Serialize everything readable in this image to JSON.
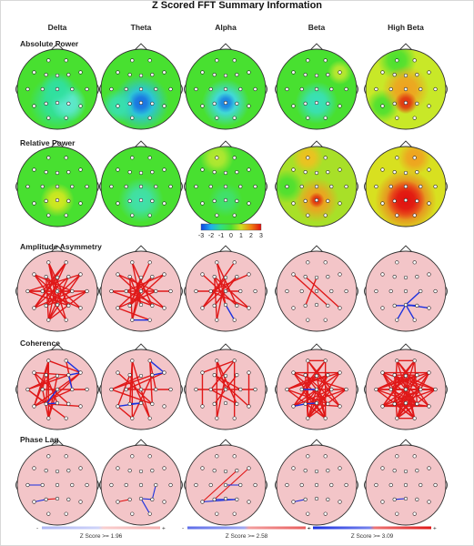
{
  "title": "Z Scored FFT Summary Information",
  "bands": [
    "Delta",
    "Theta",
    "Alpha",
    "Beta",
    "High Beta"
  ],
  "sections": {
    "absolute_power": "Absolute Power",
    "relative_power": "Relative Power",
    "amplitude_asymmetry": "Amplitude Asymmetry",
    "coherence": "Coherence",
    "phase_lag": "Phase Lag"
  },
  "colorbar": {
    "ticks": [
      "-3",
      "-2",
      "-1",
      "0",
      "1",
      "2",
      "3"
    ],
    "colors": [
      "#1040e0",
      "#20b0f0",
      "#30e080",
      "#48e030",
      "#d0e020",
      "#f08010",
      "#e01010"
    ]
  },
  "zscore_legend": [
    {
      "minus": "-",
      "text": "Z Score >= 1.96",
      "plus": "+"
    },
    {
      "minus": "-",
      "text": "Z Score >= 2.58",
      "plus": "+"
    },
    {
      "minus": "-",
      "text": "Z Score >= 3.09",
      "plus": "+"
    }
  ],
  "maps": {
    "absolute_power": [
      {
        "base": "#48e030",
        "blobs": [
          {
            "e": "Pz",
            "c": "#30e0a0",
            "r": 0.5
          },
          {
            "e": "P4",
            "c": "#60e8d0",
            "r": 0.32
          },
          {
            "e": "Cz",
            "c": "#30e0a0",
            "r": 0.3
          }
        ]
      },
      {
        "base": "#48e030",
        "blobs": [
          {
            "e": "Pz",
            "c": "#28c0f0",
            "r": 0.5
          },
          {
            "e": "Pz",
            "c": "#1a70e0",
            "r": 0.22
          },
          {
            "e": "T5",
            "c": "#38e0b0",
            "r": 0.3
          }
        ]
      },
      {
        "base": "#48e030",
        "blobs": [
          {
            "e": "Pz",
            "c": "#40d8f0",
            "r": 0.42
          },
          {
            "e": "Pz",
            "c": "#1a80e0",
            "r": 0.18
          }
        ]
      },
      {
        "base": "#48e030",
        "blobs": [
          {
            "e": "Pz",
            "c": "#38e0c0",
            "r": 0.38
          },
          {
            "e": "F8",
            "c": "#c0e830",
            "r": 0.22
          }
        ]
      },
      {
        "base": "#c8e828",
        "blobs": [
          {
            "e": "Fp1",
            "c": "#48e030",
            "r": 0.35
          },
          {
            "e": "T5",
            "c": "#48e030",
            "r": 0.3
          },
          {
            "e": "Cz",
            "c": "#f0a020",
            "r": 0.42
          },
          {
            "e": "Pz",
            "c": "#e03010",
            "r": 0.2
          }
        ]
      }
    ],
    "relative_power": [
      {
        "base": "#48e030",
        "blobs": [
          {
            "e": "Pz",
            "c": "#d8e820",
            "r": 0.3
          }
        ]
      },
      {
        "base": "#48e030",
        "blobs": [
          {
            "e": "Pz",
            "c": "#40e0b0",
            "r": 0.4
          }
        ]
      },
      {
        "base": "#48e030",
        "blobs": [
          {
            "e": "Fp1",
            "c": "#b8e830",
            "r": 0.3
          },
          {
            "e": "Pz",
            "c": "#40e070",
            "r": 0.3
          }
        ]
      },
      {
        "base": "#a8e028",
        "blobs": [
          {
            "e": "Pz",
            "c": "#f0a020",
            "r": 0.4
          },
          {
            "e": "Pz",
            "c": "#e03010",
            "r": 0.14
          },
          {
            "e": "Fp1",
            "c": "#f0c020",
            "r": 0.28
          },
          {
            "e": "T3",
            "c": "#48e030",
            "r": 0.3
          }
        ]
      },
      {
        "base": "#d8e020",
        "blobs": [
          {
            "e": "Pz",
            "c": "#f06020",
            "r": 0.55
          },
          {
            "e": "Pz",
            "c": "#e01010",
            "r": 0.35
          },
          {
            "e": "Fp2",
            "c": "#f0a020",
            "r": 0.3
          }
        ]
      }
    ]
  },
  "connections": {
    "amplitude_asymmetry": [
      {
        "red": [
          [
            "Fp1",
            "Pz"
          ],
          [
            "Fp1",
            "O2"
          ],
          [
            "Fp1",
            "P4"
          ],
          [
            "F7",
            "C4"
          ],
          [
            "F7",
            "P4"
          ],
          [
            "F7",
            "O2"
          ],
          [
            "F3",
            "Pz"
          ],
          [
            "F3",
            "O1"
          ],
          [
            "F3",
            "T6"
          ],
          [
            "Fz",
            "O1"
          ],
          [
            "Fz",
            "T5"
          ],
          [
            "F4",
            "T5"
          ],
          [
            "F4",
            "O1"
          ],
          [
            "F8",
            "P3"
          ],
          [
            "F8",
            "T3"
          ],
          [
            "F8",
            "O1"
          ],
          [
            "Fp2",
            "P3"
          ],
          [
            "Fp2",
            "T5"
          ],
          [
            "Fp2",
            "C3"
          ],
          [
            "C3",
            "T6"
          ],
          [
            "C4",
            "T5"
          ],
          [
            "T3",
            "C4"
          ],
          [
            "T3",
            "T4"
          ],
          [
            "P3",
            "T4"
          ],
          [
            "P4",
            "T3"
          ],
          [
            "O1",
            "T4"
          ]
        ],
        "blue": []
      },
      {
        "red": [
          [
            "Fp1",
            "Pz"
          ],
          [
            "Fp1",
            "P4"
          ],
          [
            "F7",
            "C4"
          ],
          [
            "F7",
            "P4"
          ],
          [
            "F3",
            "O1"
          ],
          [
            "F3",
            "Pz"
          ],
          [
            "F3",
            "T6"
          ],
          [
            "Fz",
            "P3"
          ],
          [
            "Fz",
            "O1"
          ],
          [
            "F4",
            "P3"
          ],
          [
            "F4",
            "T5"
          ],
          [
            "F8",
            "P3"
          ],
          [
            "F8",
            "C3"
          ],
          [
            "Fp2",
            "P3"
          ],
          [
            "C3",
            "T6"
          ],
          [
            "C4",
            "T5"
          ],
          [
            "T3",
            "T4"
          ],
          [
            "T3",
            "P4"
          ],
          [
            "T5",
            "O2"
          ],
          [
            "Cz",
            "O1"
          ]
        ],
        "blue": [
          [
            "O1",
            "O2"
          ]
        ]
      },
      {
        "red": [
          [
            "Fp1",
            "P4"
          ],
          [
            "Fp1",
            "Pz"
          ],
          [
            "F7",
            "P4"
          ],
          [
            "F3",
            "O1"
          ],
          [
            "F3",
            "Pz"
          ],
          [
            "F3",
            "T6"
          ],
          [
            "Fz",
            "O1"
          ],
          [
            "Fz",
            "T5"
          ],
          [
            "F4",
            "T5"
          ],
          [
            "F4",
            "P3"
          ],
          [
            "F8",
            "C3"
          ],
          [
            "Fp2",
            "T5"
          ],
          [
            "T3",
            "C4"
          ],
          [
            "C3",
            "T6"
          ],
          [
            "Cz",
            "P3"
          ]
        ],
        "blue": [
          [
            "Pz",
            "O2"
          ]
        ]
      },
      {
        "red": [
          [
            "F7",
            "P4"
          ],
          [
            "F3",
            "T6"
          ],
          [
            "Fz",
            "P3"
          ]
        ],
        "blue": []
      },
      {
        "red": [],
        "blue": [
          [
            "Pz",
            "T6"
          ],
          [
            "Pz",
            "O2"
          ],
          [
            "Pz",
            "C4"
          ],
          [
            "Pz",
            "P4"
          ],
          [
            "P3",
            "P4"
          ],
          [
            "Pz",
            "O1"
          ]
        ]
      }
    ],
    "coherence": [
      {
        "red": [
          [
            "Fp1",
            "C3"
          ],
          [
            "Fp1",
            "P3"
          ],
          [
            "Fp1",
            "O1"
          ],
          [
            "Fp1",
            "T5"
          ],
          [
            "Fp2",
            "C4"
          ],
          [
            "F7",
            "P4"
          ],
          [
            "F7",
            "C3"
          ],
          [
            "F3",
            "T5"
          ],
          [
            "F3",
            "Pz"
          ],
          [
            "Fz",
            "O1"
          ],
          [
            "Fz",
            "T3"
          ],
          [
            "F4",
            "T3"
          ],
          [
            "F8",
            "T5"
          ],
          [
            "F8",
            "P3"
          ],
          [
            "C3",
            "T4"
          ],
          [
            "C4",
            "T5"
          ],
          [
            "T3",
            "O2"
          ],
          [
            "P3",
            "T6"
          ],
          [
            "Cz",
            "O1"
          ],
          [
            "Fp1",
            "F8"
          ],
          [
            "F7",
            "F4"
          ],
          [
            "T3",
            "P3"
          ],
          [
            "C3",
            "O1"
          ]
        ],
        "blue": [
          [
            "F8",
            "F4"
          ],
          [
            "Fp2",
            "F8"
          ],
          [
            "F4",
            "C4"
          ],
          [
            "P3",
            "Pz"
          ],
          [
            "Cz",
            "P3"
          ]
        ]
      },
      {
        "red": [
          [
            "Fp1",
            "Cz"
          ],
          [
            "Fp1",
            "P3"
          ],
          [
            "Fp1",
            "O1"
          ],
          [
            "Fp2",
            "C4"
          ],
          [
            "Fp2",
            "P4"
          ],
          [
            "F7",
            "P4"
          ],
          [
            "F3",
            "T5"
          ],
          [
            "F3",
            "O2"
          ],
          [
            "Fz",
            "T3"
          ],
          [
            "F4",
            "T3"
          ],
          [
            "F4",
            "O1"
          ],
          [
            "F8",
            "C3"
          ],
          [
            "C3",
            "T4"
          ],
          [
            "T3",
            "P4"
          ],
          [
            "Cz",
            "O2"
          ],
          [
            "T5",
            "O1"
          ]
        ],
        "blue": [
          [
            "Fp2",
            "F8"
          ],
          [
            "F4",
            "F8"
          ],
          [
            "P3",
            "Pz"
          ],
          [
            "Pz",
            "T5"
          ]
        ]
      },
      {
        "red": [
          [
            "Fp1",
            "Cz"
          ],
          [
            "Fp1",
            "P4"
          ],
          [
            "Fp1",
            "O1"
          ],
          [
            "Fp2",
            "C3"
          ],
          [
            "Fp2",
            "O2"
          ],
          [
            "F7",
            "T5"
          ],
          [
            "F3",
            "T6"
          ],
          [
            "Fz",
            "O1"
          ],
          [
            "F4",
            "P3"
          ],
          [
            "F8",
            "T6"
          ],
          [
            "C3",
            "P4"
          ],
          [
            "T3",
            "T4"
          ],
          [
            "F7",
            "Fp2"
          ],
          [
            "F3",
            "C4"
          ]
        ],
        "blue": []
      },
      {
        "red": [
          [
            "Fp1",
            "C4"
          ],
          [
            "Fp1",
            "T6"
          ],
          [
            "Fp1",
            "O1"
          ],
          [
            "Fp2",
            "C3"
          ],
          [
            "Fp2",
            "T5"
          ],
          [
            "Fp2",
            "O2"
          ],
          [
            "F7",
            "T4"
          ],
          [
            "F7",
            "P4"
          ],
          [
            "F7",
            "O2"
          ],
          [
            "F3",
            "T6"
          ],
          [
            "F3",
            "O1"
          ],
          [
            "F3",
            "P4"
          ],
          [
            "Fz",
            "T5"
          ],
          [
            "Fz",
            "O2"
          ],
          [
            "Fz",
            "T3"
          ],
          [
            "F4",
            "T3"
          ],
          [
            "F4",
            "P3"
          ],
          [
            "F4",
            "O1"
          ],
          [
            "F8",
            "T3"
          ],
          [
            "F8",
            "T5"
          ],
          [
            "F8",
            "O1"
          ],
          [
            "C3",
            "T4"
          ],
          [
            "C3",
            "O2"
          ],
          [
            "C4",
            "T5"
          ],
          [
            "C4",
            "O1"
          ],
          [
            "T3",
            "P4"
          ],
          [
            "T3",
            "O2"
          ],
          [
            "T4",
            "P3"
          ],
          [
            "T4",
            "O1"
          ],
          [
            "P3",
            "T6"
          ],
          [
            "Cz",
            "O1"
          ],
          [
            "Cz",
            "O2"
          ],
          [
            "F7",
            "F8"
          ],
          [
            "Fp1",
            "Fp2"
          ]
        ],
        "blue": [
          [
            "P3",
            "Pz"
          ],
          [
            "C3",
            "Cz"
          ],
          [
            "T5",
            "P3"
          ]
        ]
      },
      {
        "red": [
          [
            "Fp1",
            "C4"
          ],
          [
            "Fp1",
            "T6"
          ],
          [
            "Fp1",
            "O2"
          ],
          [
            "Fp1",
            "P3"
          ],
          [
            "Fp2",
            "C3"
          ],
          [
            "Fp2",
            "T5"
          ],
          [
            "Fp2",
            "O1"
          ],
          [
            "Fp2",
            "P4"
          ],
          [
            "F7",
            "T4"
          ],
          [
            "F7",
            "P4"
          ],
          [
            "F7",
            "O2"
          ],
          [
            "F7",
            "C3"
          ],
          [
            "F3",
            "T6"
          ],
          [
            "F3",
            "O1"
          ],
          [
            "F3",
            "P4"
          ],
          [
            "F3",
            "C4"
          ],
          [
            "Fz",
            "T5"
          ],
          [
            "Fz",
            "O2"
          ],
          [
            "Fz",
            "T3"
          ],
          [
            "Fz",
            "T4"
          ],
          [
            "F4",
            "T3"
          ],
          [
            "F4",
            "P3"
          ],
          [
            "F4",
            "O1"
          ],
          [
            "F4",
            "C3"
          ],
          [
            "F8",
            "T3"
          ],
          [
            "F8",
            "T5"
          ],
          [
            "F8",
            "O1"
          ],
          [
            "F8",
            "C4"
          ],
          [
            "C3",
            "T4"
          ],
          [
            "C3",
            "O2"
          ],
          [
            "C3",
            "P4"
          ],
          [
            "C4",
            "T5"
          ],
          [
            "C4",
            "O1"
          ],
          [
            "C4",
            "P3"
          ],
          [
            "T3",
            "P4"
          ],
          [
            "T3",
            "O2"
          ],
          [
            "T3",
            "T4"
          ],
          [
            "T4",
            "P3"
          ],
          [
            "T4",
            "O1"
          ],
          [
            "P3",
            "T6"
          ],
          [
            "P3",
            "O2"
          ],
          [
            "P4",
            "O1"
          ],
          [
            "P4",
            "T5"
          ],
          [
            "Cz",
            "O1"
          ],
          [
            "Cz",
            "O2"
          ],
          [
            "Cz",
            "T3"
          ],
          [
            "Cz",
            "T4"
          ],
          [
            "F7",
            "F8"
          ],
          [
            "Fp1",
            "Fp2"
          ],
          [
            "F3",
            "F4"
          ],
          [
            "T5",
            "T6"
          ],
          [
            "O1",
            "O2"
          ],
          [
            "Fz",
            "Pz"
          ],
          [
            "C3",
            "C4"
          ],
          [
            "Pz",
            "T5"
          ],
          [
            "Pz",
            "T6"
          ]
        ],
        "blue": []
      }
    ],
    "phase_lag": [
      {
        "red": [
          [
            "P3",
            "Pz"
          ]
        ],
        "blue": [
          [
            "T3",
            "C3"
          ],
          [
            "T5",
            "P3"
          ]
        ]
      },
      {
        "red": [
          [
            "T5",
            "P3"
          ]
        ],
        "blue": [
          [
            "Pz",
            "P4"
          ],
          [
            "P4",
            "C4"
          ],
          [
            "Pz",
            "O2"
          ]
        ]
      },
      {
        "red": [
          [
            "T5",
            "F4"
          ],
          [
            "P3",
            "F8"
          ]
        ],
        "blue": [
          [
            "T5",
            "P4"
          ],
          [
            "P3",
            "P4"
          ],
          [
            "Cz",
            "C4"
          ]
        ]
      },
      {
        "red": [],
        "blue": [
          [
            "T5",
            "P3"
          ]
        ]
      },
      {
        "red": [],
        "blue": [
          [
            "P3",
            "Pz"
          ]
        ]
      }
    ]
  }
}
